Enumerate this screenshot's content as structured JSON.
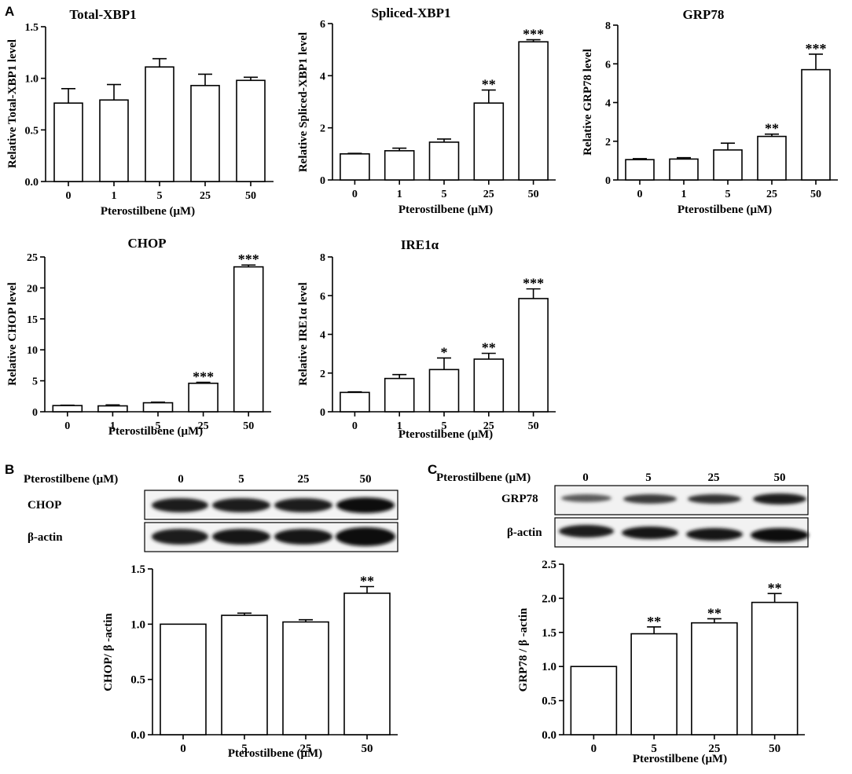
{
  "panel_labels": [
    "A",
    "B",
    "C"
  ],
  "blot_b": {
    "header_label": "Pterostilbene (μM)",
    "lane_labels": [
      "0",
      "5",
      "25",
      "50"
    ],
    "rows": [
      "CHOP",
      "β-actin"
    ]
  },
  "blot_c": {
    "header_label": "Pterostilbene (μM)",
    "lane_labels": [
      "0",
      "5",
      "25",
      "50"
    ],
    "rows": [
      "GRP78",
      "β-actin"
    ]
  },
  "chart_data": [
    {
      "type": "bar",
      "title": "Total-XBP1",
      "xlabel": "Pterostilbene (μM)",
      "ylabel": "Relative Total-XBP1 level",
      "categories": [
        "0",
        "1",
        "5",
        "25",
        "50"
      ],
      "values": [
        0.76,
        0.79,
        1.11,
        0.93,
        0.98
      ],
      "errors": [
        0.14,
        0.15,
        0.08,
        0.11,
        0.03
      ],
      "annotations": [
        "",
        "",
        "",
        "",
        ""
      ],
      "ylim": [
        0,
        1.5
      ],
      "yticks": [
        "0.0",
        "0.5",
        "1.0",
        "1.5"
      ]
    },
    {
      "type": "bar",
      "title": "Spliced-XBP1",
      "xlabel": "Pterostilbene (μM)",
      "ylabel": "Relative Spliced-XBP1 level",
      "categories": [
        "0",
        "1",
        "5",
        "25",
        "50"
      ],
      "values": [
        1.0,
        1.12,
        1.45,
        2.95,
        5.3
      ],
      "errors": [
        0.02,
        0.1,
        0.12,
        0.5,
        0.08
      ],
      "annotations": [
        "",
        "",
        "",
        "**",
        "***"
      ],
      "ylim": [
        0,
        6
      ],
      "yticks": [
        "0",
        "2",
        "4",
        "6"
      ]
    },
    {
      "type": "bar",
      "title": "GRP78",
      "xlabel": "Pterostilbene (μM)",
      "ylabel": "Relative GRP78 level",
      "categories": [
        "0",
        "1",
        "5",
        "25",
        "50"
      ],
      "values": [
        1.05,
        1.08,
        1.55,
        2.25,
        5.7
      ],
      "errors": [
        0.05,
        0.07,
        0.35,
        0.12,
        0.8
      ],
      "annotations": [
        "",
        "",
        "",
        "**",
        "***"
      ],
      "ylim": [
        0,
        8
      ],
      "yticks": [
        "0",
        "2",
        "4",
        "6",
        "8"
      ]
    },
    {
      "type": "bar",
      "title": "CHOP",
      "xlabel": "Pterostilbene (μM)",
      "ylabel": "Relative CHOP level",
      "categories": [
        "0",
        "1",
        "5",
        "25",
        "50"
      ],
      "values": [
        1.0,
        0.95,
        1.45,
        4.6,
        23.4
      ],
      "errors": [
        0.05,
        0.15,
        0.1,
        0.15,
        0.3
      ],
      "annotations": [
        "",
        "",
        "",
        "***",
        "***"
      ],
      "ylim": [
        0,
        25
      ],
      "yticks": [
        "0",
        "5",
        "10",
        "15",
        "20",
        "25"
      ]
    },
    {
      "type": "bar",
      "title": "IRE1α",
      "xlabel": "Pterostilbene (μM)",
      "ylabel": "Relative  IRE1α level",
      "categories": [
        "0",
        "1",
        "5",
        "25",
        "50"
      ],
      "values": [
        1.0,
        1.72,
        2.18,
        2.72,
        5.85
      ],
      "errors": [
        0.03,
        0.2,
        0.6,
        0.3,
        0.5
      ],
      "annotations": [
        "",
        "",
        "*",
        "**",
        "***"
      ],
      "ylim": [
        0,
        8
      ],
      "yticks": [
        "0",
        "2",
        "4",
        "6",
        "8"
      ]
    },
    {
      "type": "bar",
      "title": "",
      "xlabel": "Pterostilbene (μM)",
      "ylabel": "CHOP/ β -actin",
      "categories": [
        "0",
        "5",
        "25",
        "50"
      ],
      "values": [
        1.0,
        1.08,
        1.02,
        1.28
      ],
      "errors": [
        0.0,
        0.02,
        0.02,
        0.06
      ],
      "annotations": [
        "",
        "",
        "",
        "**"
      ],
      "ylim": [
        0,
        1.5
      ],
      "yticks": [
        "0.0",
        "0.5",
        "1.0",
        "1.5"
      ]
    },
    {
      "type": "bar",
      "title": "",
      "xlabel": "Pterostilbene (μM)",
      "ylabel": "GRP78 / β -actin",
      "categories": [
        "0",
        "5",
        "25",
        "50"
      ],
      "values": [
        1.0,
        1.48,
        1.64,
        1.94
      ],
      "errors": [
        0.0,
        0.1,
        0.06,
        0.13
      ],
      "annotations": [
        "",
        "**",
        "**",
        "**"
      ],
      "ylim": [
        0,
        2.5
      ],
      "yticks": [
        "0.0",
        "0.5",
        "1.0",
        "1.5",
        "2.0",
        "2.5"
      ]
    }
  ]
}
